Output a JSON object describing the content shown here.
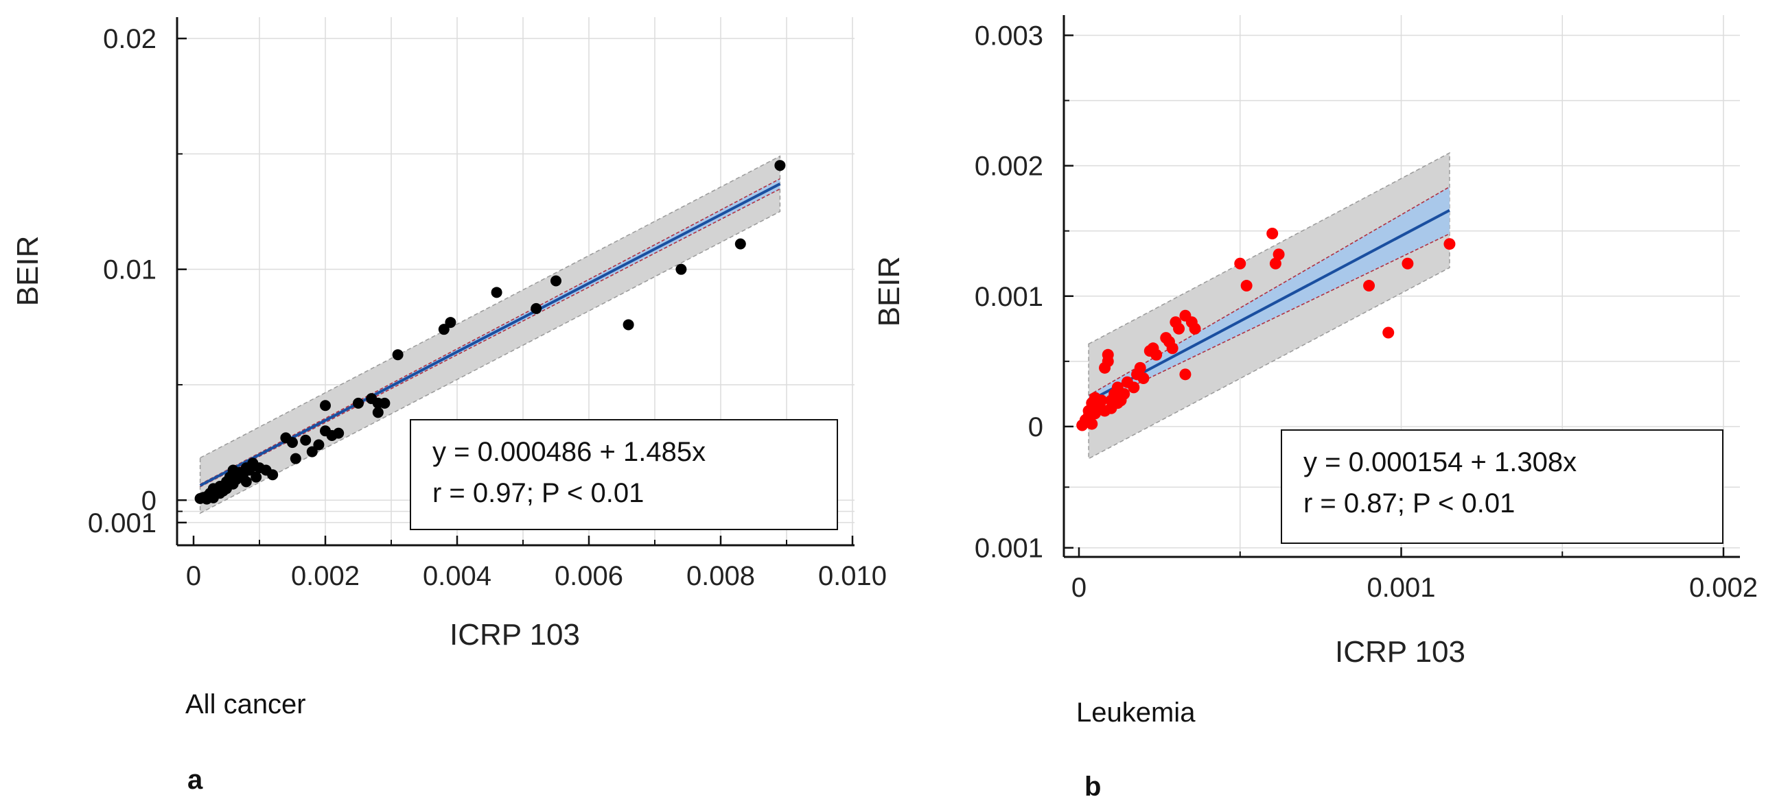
{
  "figure": {
    "caption_a": "All cancer",
    "letter_a": "a",
    "caption_b": "Leukemia",
    "letter_b": "b"
  },
  "chart_data": [
    {
      "id": "a",
      "type": "scatter",
      "title": "",
      "xlabel": "ICRP 103",
      "ylabel": "BEIR",
      "xlim": [
        0,
        0.01
      ],
      "ylim": [
        -0.00127,
        0.0203
      ],
      "x_tick_values": [
        0,
        0.002,
        0.004,
        0.006,
        0.008,
        0.01
      ],
      "x_tick_labels": [
        "0",
        "0.002",
        "0.004",
        "0.006",
        "0.008",
        "0.010"
      ],
      "y_tick_values": [
        0.02,
        0.01,
        0,
        -0.00097
      ],
      "y_tick_labels": [
        "0.02",
        "0.01",
        "0",
        "0.001"
      ],
      "grid": true,
      "point_color": "#000000",
      "fit_color": "#1a4fa0",
      "fit": {
        "intercept": 0.000486,
        "slope": 1.485,
        "x_range": [
          0.0001,
          0.0089
        ]
      },
      "confidence_band": 0.00022,
      "prediction_band": 0.0012,
      "equation": "y = 0.000486 + 1.485x",
      "stats": "r = 0.97; P < 0.01",
      "points": [
        [
          0.0001,
          7e-05
        ],
        [
          0.00015,
          0.00012
        ],
        [
          0.0002,
          5e-05
        ],
        [
          0.00022,
          0.0002
        ],
        [
          0.00025,
          0.0003
        ],
        [
          0.0003,
          0.0001
        ],
        [
          0.0003,
          0.0005
        ],
        [
          0.00035,
          0.0004
        ],
        [
          0.0004,
          0.0003
        ],
        [
          0.0004,
          0.0006
        ],
        [
          0.00045,
          0.0004
        ],
        [
          0.0005,
          0.0008
        ],
        [
          0.0005,
          0.0005
        ],
        [
          0.00055,
          0.001
        ],
        [
          0.0006,
          0.0007
        ],
        [
          0.0006,
          0.0013
        ],
        [
          0.00065,
          0.0009
        ],
        [
          0.0007,
          0.0012
        ],
        [
          0.00075,
          0.0011
        ],
        [
          0.0008,
          0.0014
        ],
        [
          0.0008,
          0.0008
        ],
        [
          0.00085,
          0.0013
        ],
        [
          0.0009,
          0.0016
        ],
        [
          0.00095,
          0.001
        ],
        [
          0.001,
          0.0014
        ],
        [
          0.0011,
          0.0013
        ],
        [
          0.0012,
          0.0011
        ],
        [
          0.0014,
          0.0027
        ],
        [
          0.0015,
          0.0025
        ],
        [
          0.00155,
          0.0018
        ],
        [
          0.0017,
          0.0026
        ],
        [
          0.0018,
          0.0021
        ],
        [
          0.0019,
          0.0024
        ],
        [
          0.002,
          0.003
        ],
        [
          0.002,
          0.0041
        ],
        [
          0.0021,
          0.0028
        ],
        [
          0.0022,
          0.0029
        ],
        [
          0.0025,
          0.0042
        ],
        [
          0.0027,
          0.0044
        ],
        [
          0.0028,
          0.0038
        ],
        [
          0.0028,
          0.0042
        ],
        [
          0.0029,
          0.0042
        ],
        [
          0.0031,
          0.0063
        ],
        [
          0.0038,
          0.0074
        ],
        [
          0.0039,
          0.0077
        ],
        [
          0.0046,
          0.009
        ],
        [
          0.0052,
          0.0083
        ],
        [
          0.0055,
          0.0095
        ],
        [
          0.0066,
          0.0076
        ],
        [
          0.0074,
          0.01
        ],
        [
          0.0083,
          0.0111
        ],
        [
          0.0089,
          0.0145
        ]
      ]
    },
    {
      "id": "b",
      "type": "scatter",
      "title": "",
      "xlabel": "ICRP 103",
      "ylabel": "BEIR",
      "xlim": [
        0,
        0.002
      ],
      "ylim": [
        -0.001,
        0.00305
      ],
      "x_tick_values": [
        0,
        0.001,
        0.002
      ],
      "x_tick_labels": [
        "0",
        "0.001",
        "0.002"
      ],
      "y_tick_values": [
        0.003,
        0.002,
        0.001,
        0,
        -0.00093
      ],
      "y_tick_labels": [
        "0.003",
        "0.002",
        "0.001",
        "0",
        "0.001"
      ],
      "grid": true,
      "point_color": "#ff0000",
      "fit_color": "#1a4fa0",
      "fit": {
        "intercept": 0.000154,
        "slope": 1.308,
        "x_range": [
          3e-05,
          0.00115
        ]
      },
      "confidence_band": 0.00018,
      "prediction_band": 0.00044,
      "equation": "y = 0.000154 + 1.308x",
      "stats": "r = 0.87; P < 0.01",
      "points": [
        [
          1e-05,
          1e-05
        ],
        [
          2e-05,
          5e-05
        ],
        [
          3e-05,
          8e-05
        ],
        [
          3e-05,
          0.00012
        ],
        [
          4e-05,
          2e-05
        ],
        [
          4e-05,
          0.00018
        ],
        [
          5e-05,
          0.0001
        ],
        [
          5e-05,
          0.00022
        ],
        [
          6e-05,
          0.00015
        ],
        [
          7e-05,
          0.0002
        ],
        [
          8e-05,
          0.00012
        ],
        [
          8e-05,
          0.00045
        ],
        [
          9e-05,
          0.0005
        ],
        [
          9e-05,
          0.00055
        ],
        [
          0.0001,
          0.0002
        ],
        [
          0.0001,
          0.00014
        ],
        [
          0.00011,
          0.00025
        ],
        [
          0.00012,
          0.00018
        ],
        [
          0.00012,
          0.0003
        ],
        [
          0.00013,
          0.0002
        ],
        [
          0.00014,
          0.00025
        ],
        [
          0.00015,
          0.00034
        ],
        [
          0.00017,
          0.0003
        ],
        [
          0.00018,
          0.0004
        ],
        [
          0.00019,
          0.00045
        ],
        [
          0.0002,
          0.00037
        ],
        [
          0.00022,
          0.00058
        ],
        [
          0.00023,
          0.0006
        ],
        [
          0.00024,
          0.00055
        ],
        [
          0.00027,
          0.00068
        ],
        [
          0.00028,
          0.00065
        ],
        [
          0.00029,
          0.0006
        ],
        [
          0.0003,
          0.0008
        ],
        [
          0.00031,
          0.00075
        ],
        [
          0.00033,
          0.00085
        ],
        [
          0.00033,
          0.0004
        ],
        [
          0.00035,
          0.0008
        ],
        [
          0.00036,
          0.00075
        ],
        [
          0.0005,
          0.00125
        ],
        [
          0.00052,
          0.00108
        ],
        [
          0.0006,
          0.00148
        ],
        [
          0.00061,
          0.00125
        ],
        [
          0.00062,
          0.00132
        ],
        [
          0.0009,
          0.00108
        ],
        [
          0.00096,
          0.00072
        ],
        [
          0.00102,
          0.00125
        ],
        [
          0.00115,
          0.0014
        ]
      ]
    }
  ]
}
